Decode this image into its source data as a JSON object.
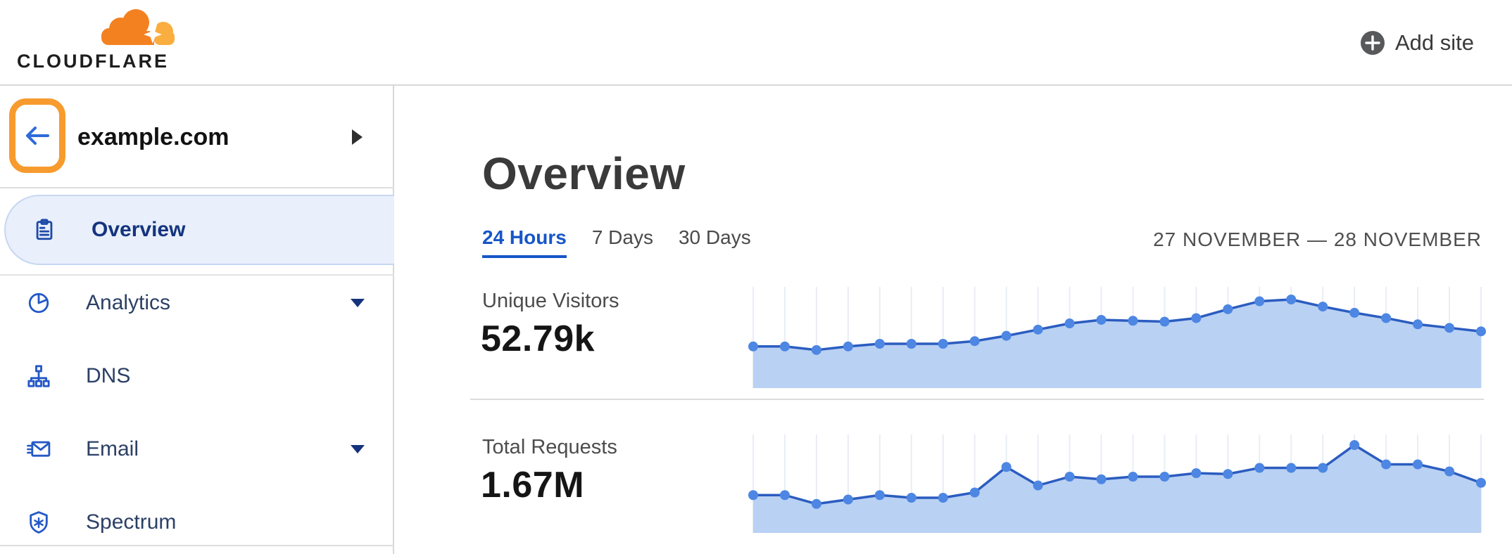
{
  "topbar": {
    "logo_text": "CLOUDFLARE",
    "add_site_label": "Add site"
  },
  "sidebar": {
    "site": {
      "name": "example.com"
    },
    "items": [
      {
        "label": "Overview",
        "icon": "clipboard-icon",
        "selected": true,
        "expandable": false
      },
      {
        "label": "Analytics",
        "icon": "pie-chart-icon",
        "selected": false,
        "expandable": true
      },
      {
        "label": "DNS",
        "icon": "dns-tree-icon",
        "selected": false,
        "expandable": false
      },
      {
        "label": "Email",
        "icon": "email-send-icon",
        "selected": false,
        "expandable": true
      },
      {
        "label": "Spectrum",
        "icon": "shield-icon",
        "selected": false,
        "expandable": false
      }
    ]
  },
  "main": {
    "title": "Overview",
    "tabs": [
      {
        "label": "24 Hours",
        "active": true
      },
      {
        "label": "7 Days",
        "active": false
      },
      {
        "label": "30 Days",
        "active": false
      }
    ],
    "date_range": "27 NOVEMBER — 28 NOVEMBER",
    "metrics": [
      {
        "label": "Unique Visitors",
        "value": "52.79k"
      },
      {
        "label": "Total Requests",
        "value": "1.67M"
      }
    ]
  },
  "colors": {
    "brand_orange": "#F48120",
    "brand_orange_light": "#FAAE40",
    "annotation_orange": "#F79B2E",
    "accent_blue": "#1656c8",
    "sidebar_icon_blue": "#2458c6",
    "selected_bg": "#e9effb",
    "chart_line": "#2b5cc0",
    "chart_dot": "#4d86e3",
    "chart_area": "#b9d1f3",
    "chart_grid": "#e9edf5",
    "divider_gray": "#dcdcdc"
  },
  "chart_data": [
    {
      "type": "area",
      "title": "Unique Visitors",
      "headline_value": "52.79k",
      "x_description": "24 points across 27 November — 28 November (24 Hours view, hourly, unlabeled axis)",
      "y_description": "relative height of unlabeled sparkline, normalized 0–1 of peak",
      "ylim": [
        0,
        1
      ],
      "grid": "vertical-only",
      "legend": "none",
      "values": [
        0.47,
        0.47,
        0.43,
        0.47,
        0.5,
        0.5,
        0.5,
        0.53,
        0.59,
        0.66,
        0.73,
        0.77,
        0.76,
        0.75,
        0.79,
        0.89,
        0.98,
        1.0,
        0.92,
        0.85,
        0.79,
        0.72,
        0.68,
        0.64
      ]
    },
    {
      "type": "area",
      "title": "Total Requests",
      "headline_value": "1.67M",
      "x_description": "24 points across 27 November — 28 November (24 Hours view, hourly, unlabeled axis)",
      "y_description": "relative height of unlabeled sparkline, normalized 0–1 of peak",
      "ylim": [
        0,
        1
      ],
      "grid": "vertical-only",
      "legend": "none",
      "values": [
        0.43,
        0.43,
        0.33,
        0.38,
        0.43,
        0.4,
        0.4,
        0.46,
        0.75,
        0.54,
        0.64,
        0.61,
        0.64,
        0.64,
        0.68,
        0.67,
        0.74,
        0.74,
        0.74,
        1.0,
        0.78,
        0.78,
        0.7,
        0.57
      ]
    }
  ]
}
